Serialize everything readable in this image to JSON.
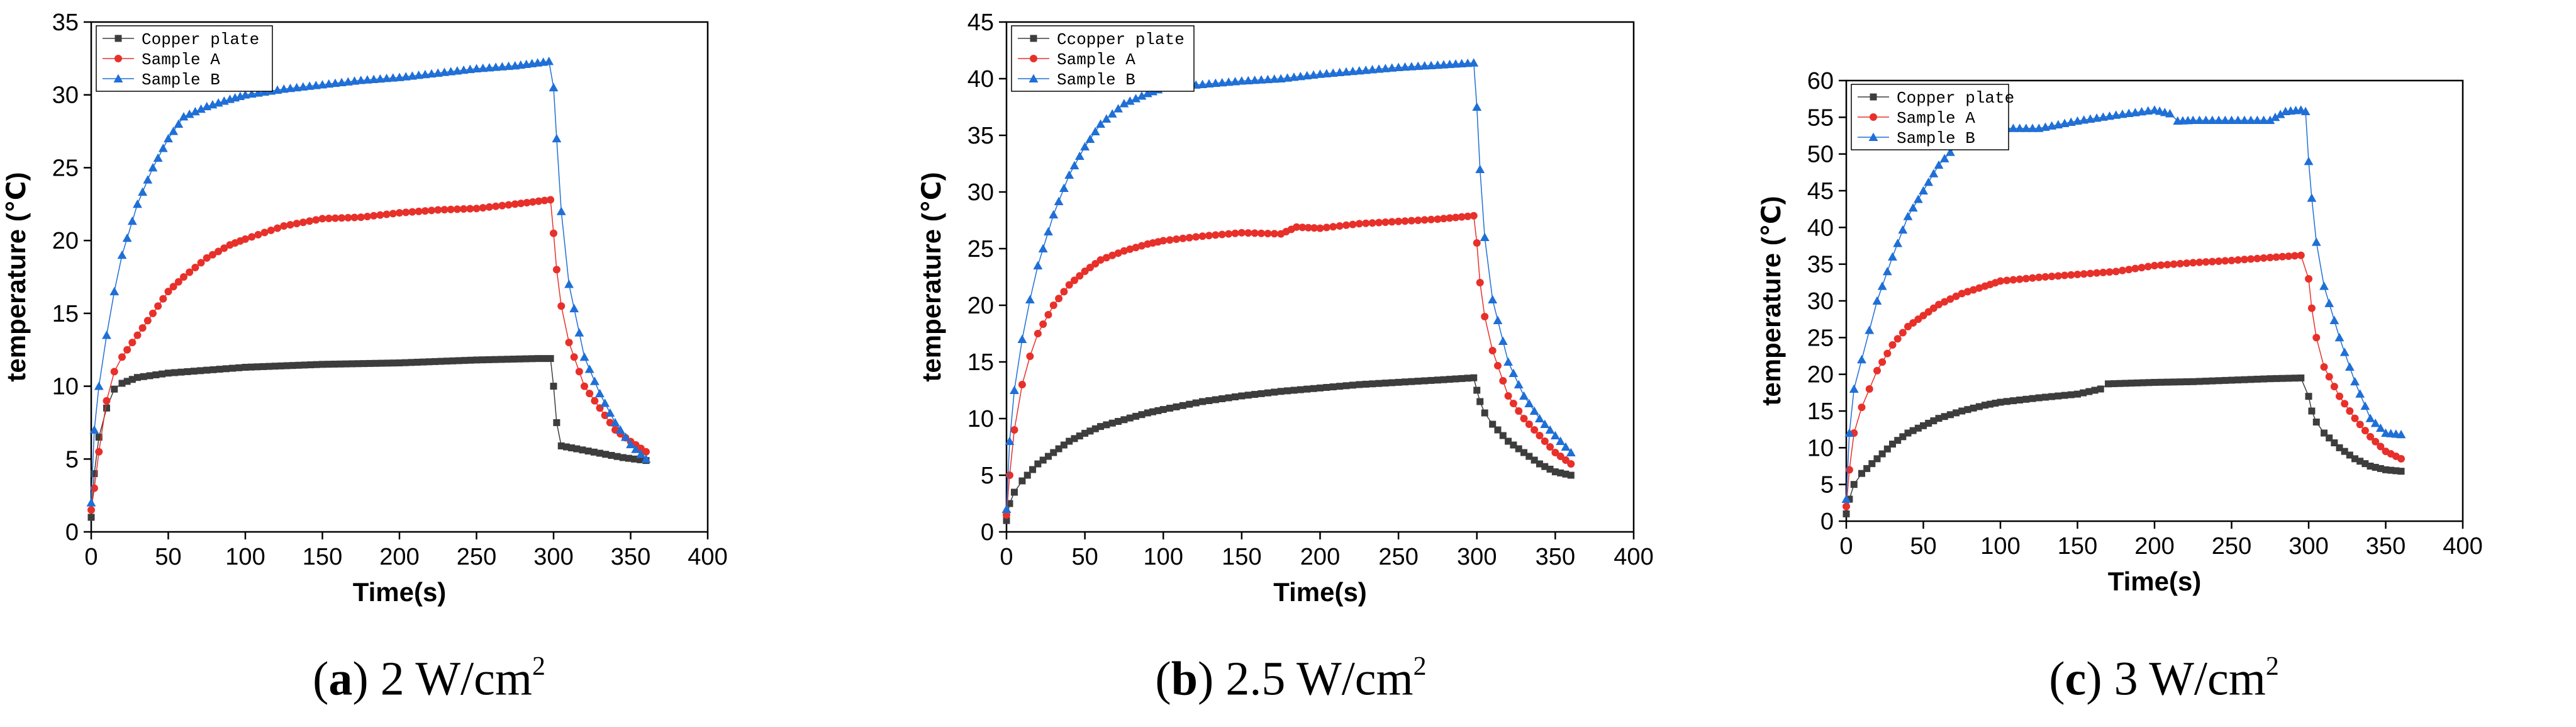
{
  "colors": {
    "copper": "#3d3d3d",
    "sampleA": "#e8302a",
    "sampleB": "#1f6fd6"
  },
  "captions": [
    {
      "letter": "a",
      "open": "(",
      "close": ")",
      "value": "2 W/cm",
      "sup": "2"
    },
    {
      "letter": "b",
      "open": "(",
      "close": ")",
      "value": "2.5 W/cm",
      "sup": "2"
    },
    {
      "letter": "c",
      "open": "(",
      "close": ")",
      "value": "3 W/cm",
      "sup": "2"
    }
  ],
  "chart_data": [
    {
      "type": "scatter",
      "title": "",
      "xlabel": "Time(s)",
      "ylabel": "temperature (℃)",
      "xlim": [
        0,
        400
      ],
      "ylim": [
        0,
        35
      ],
      "xticks": [
        0,
        50,
        100,
        150,
        200,
        250,
        300,
        350,
        400
      ],
      "yticks": [
        0,
        5,
        10,
        15,
        20,
        25,
        30,
        35
      ],
      "legend_position": "top-left",
      "series": [
        {
          "name": "Copper plate",
          "marker": "square",
          "color": "#3d3d3d",
          "x": [
            0,
            2,
            5,
            10,
            15,
            20,
            30,
            50,
            75,
            100,
            150,
            200,
            250,
            290,
            298,
            300,
            302,
            305,
            315,
            330,
            345,
            360
          ],
          "y": [
            1.0,
            4.0,
            6.5,
            8.5,
            9.8,
            10.2,
            10.6,
            10.9,
            11.1,
            11.3,
            11.5,
            11.6,
            11.8,
            11.9,
            11.9,
            10.0,
            7.5,
            5.9,
            5.7,
            5.4,
            5.1,
            4.9
          ]
        },
        {
          "name": "Sample A",
          "marker": "circle",
          "color": "#e8302a",
          "x": [
            0,
            2,
            5,
            10,
            15,
            20,
            30,
            40,
            50,
            60,
            75,
            90,
            100,
            125,
            150,
            175,
            200,
            225,
            250,
            275,
            298,
            300,
            302,
            305,
            310,
            320,
            330,
            340,
            350,
            360
          ],
          "y": [
            1.5,
            3.0,
            5.5,
            9.0,
            11.0,
            12.0,
            13.5,
            15.0,
            16.5,
            17.5,
            18.8,
            19.7,
            20.1,
            21.0,
            21.5,
            21.6,
            21.9,
            22.1,
            22.2,
            22.5,
            22.8,
            20.5,
            18.0,
            15.5,
            13.0,
            10.0,
            8.5,
            7.0,
            6.2,
            5.5
          ]
        },
        {
          "name": "Sample B",
          "marker": "triangle",
          "color": "#1f6fd6",
          "x": [
            0,
            2,
            5,
            10,
            15,
            20,
            30,
            40,
            50,
            60,
            75,
            90,
            100,
            125,
            150,
            175,
            200,
            225,
            250,
            275,
            297,
            300,
            302,
            305,
            310,
            320,
            330,
            340,
            350,
            360
          ],
          "y": [
            2.0,
            7.0,
            10.0,
            13.5,
            16.5,
            19.0,
            22.5,
            25.0,
            27.0,
            28.5,
            29.2,
            29.7,
            30.0,
            30.4,
            30.7,
            31.0,
            31.2,
            31.5,
            31.8,
            32.0,
            32.3,
            30.5,
            27.0,
            22.0,
            17.0,
            12.0,
            9.5,
            7.5,
            6.0,
            5.0
          ]
        }
      ]
    },
    {
      "type": "scatter",
      "title": "",
      "xlabel": "Time(s)",
      "ylabel": "temperature (℃)",
      "xlim": [
        0,
        400
      ],
      "ylim": [
        0,
        45
      ],
      "xticks": [
        0,
        50,
        100,
        150,
        200,
        250,
        300,
        350,
        400
      ],
      "yticks": [
        0,
        5,
        10,
        15,
        20,
        25,
        30,
        35,
        40,
        45
      ],
      "legend_position": "top-left",
      "series": [
        {
          "name": "Ccopper plate",
          "marker": "square",
          "color": "#3d3d3d",
          "x": [
            0,
            2,
            5,
            10,
            20,
            30,
            40,
            50,
            60,
            75,
            90,
            100,
            125,
            150,
            175,
            200,
            225,
            250,
            275,
            298,
            300,
            302,
            305,
            310,
            320,
            330,
            340,
            350,
            360
          ],
          "y": [
            1.0,
            2.5,
            3.5,
            4.5,
            6.0,
            7.0,
            8.0,
            8.7,
            9.3,
            9.9,
            10.5,
            10.8,
            11.5,
            12.0,
            12.4,
            12.7,
            13.0,
            13.2,
            13.4,
            13.6,
            12.5,
            11.5,
            10.5,
            9.5,
            8.0,
            7.0,
            6.0,
            5.3,
            5.0
          ]
        },
        {
          "name": "Sample A",
          "marker": "circle",
          "color": "#e8302a",
          "x": [
            0,
            2,
            5,
            10,
            15,
            20,
            30,
            40,
            50,
            60,
            75,
            90,
            100,
            125,
            150,
            175,
            185,
            200,
            225,
            250,
            275,
            298,
            300,
            302,
            305,
            310,
            320,
            330,
            340,
            350,
            360
          ],
          "y": [
            1.5,
            5.0,
            9.0,
            13.0,
            15.5,
            17.5,
            20.0,
            21.8,
            23.0,
            24.0,
            24.8,
            25.4,
            25.7,
            26.1,
            26.4,
            26.3,
            26.9,
            26.8,
            27.2,
            27.4,
            27.6,
            27.9,
            25.5,
            22.0,
            19.0,
            16.0,
            12.0,
            10.0,
            8.5,
            7.0,
            6.0
          ]
        },
        {
          "name": "Sample B",
          "marker": "triangle",
          "color": "#1f6fd6",
          "x": [
            0,
            2,
            5,
            10,
            15,
            20,
            30,
            40,
            50,
            60,
            75,
            90,
            100,
            125,
            150,
            175,
            200,
            225,
            250,
            275,
            298,
            300,
            302,
            305,
            310,
            320,
            330,
            340,
            350,
            360
          ],
          "y": [
            2.0,
            8.0,
            12.5,
            17.0,
            20.5,
            23.5,
            28.0,
            31.5,
            34.0,
            36.0,
            37.8,
            38.7,
            39.2,
            39.5,
            39.8,
            40.0,
            40.4,
            40.7,
            41.0,
            41.2,
            41.4,
            37.5,
            32.0,
            26.0,
            20.5,
            15.0,
            12.0,
            10.0,
            8.5,
            7.0
          ]
        }
      ]
    },
    {
      "type": "scatter",
      "title": "",
      "xlabel": "Time(s)",
      "ylabel": "temperature (℃)",
      "xlim": [
        0,
        400
      ],
      "ylim": [
        0,
        60
      ],
      "xticks": [
        0,
        50,
        100,
        150,
        200,
        250,
        300,
        350,
        400
      ],
      "yticks": [
        0,
        5,
        10,
        15,
        20,
        25,
        30,
        35,
        40,
        45,
        50,
        55,
        60
      ],
      "legend_position": "top-left",
      "series": [
        {
          "name": "Copper plate",
          "marker": "square",
          "color": "#3d3d3d",
          "x": [
            0,
            2,
            5,
            10,
            20,
            30,
            40,
            50,
            60,
            75,
            90,
            100,
            125,
            150,
            165,
            170,
            200,
            225,
            250,
            275,
            295,
            300,
            302,
            305,
            310,
            320,
            330,
            340,
            350,
            360
          ],
          "y": [
            1.0,
            3.0,
            5.0,
            6.5,
            8.5,
            10.5,
            12.0,
            13.0,
            14.0,
            15.0,
            15.8,
            16.2,
            16.8,
            17.3,
            18.0,
            18.7,
            18.9,
            19.0,
            19.2,
            19.4,
            19.5,
            17.0,
            15.0,
            13.5,
            12.0,
            10.0,
            8.5,
            7.5,
            7.0,
            6.8
          ]
        },
        {
          "name": "Sample A",
          "marker": "circle",
          "color": "#e8302a",
          "x": [
            0,
            2,
            5,
            10,
            15,
            20,
            30,
            40,
            50,
            60,
            75,
            90,
            100,
            125,
            150,
            175,
            200,
            225,
            250,
            275,
            295,
            300,
            302,
            305,
            310,
            320,
            330,
            340,
            350,
            360
          ],
          "y": [
            2.0,
            7.0,
            12.0,
            15.5,
            18.0,
            20.5,
            24.0,
            26.5,
            28.0,
            29.5,
            31.0,
            32.0,
            32.7,
            33.2,
            33.6,
            34.0,
            34.8,
            35.2,
            35.5,
            35.9,
            36.2,
            33.0,
            29.0,
            25.0,
            21.0,
            17.0,
            14.0,
            11.5,
            9.5,
            8.5
          ]
        },
        {
          "name": "Sample B",
          "marker": "triangle",
          "color": "#1f6fd6",
          "x": [
            0,
            2,
            5,
            10,
            15,
            20,
            30,
            40,
            50,
            60,
            75,
            90,
            100,
            125,
            150,
            175,
            200,
            210,
            215,
            225,
            250,
            275,
            285,
            295,
            298,
            300,
            302,
            305,
            310,
            320,
            330,
            340,
            350,
            360
          ],
          "y": [
            3.0,
            12.0,
            18.0,
            22.0,
            26.0,
            30.0,
            36.0,
            41.5,
            45.0,
            48.5,
            52.0,
            53.0,
            53.5,
            53.5,
            54.5,
            55.3,
            56.0,
            55.5,
            54.5,
            54.6,
            54.6,
            54.6,
            55.8,
            56.0,
            55.8,
            49.0,
            44.0,
            38.0,
            32.0,
            25.0,
            19.0,
            14.0,
            12.0,
            11.8
          ]
        }
      ]
    }
  ]
}
